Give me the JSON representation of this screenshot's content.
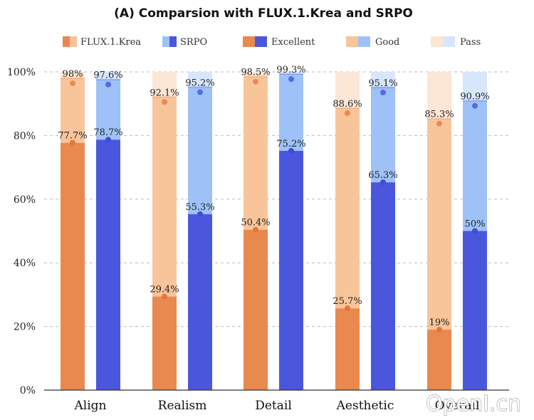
{
  "chart_data": {
    "type": "bar",
    "title": "(A)  Comparsion with FLUX.1.Krea and SRPO",
    "categories": [
      "Align",
      "Realism",
      "Detail",
      "Aesthetic",
      "Overall"
    ],
    "y_ticks": [
      "0%",
      "20%",
      "40%",
      "60%",
      "80%",
      "100%"
    ],
    "ylim": [
      0,
      100
    ],
    "grid": "horizontal dashed",
    "legend": {
      "placement": "top",
      "models": [
        {
          "name": "FLUX.1.Krea",
          "color": "#E8894F"
        },
        {
          "name": "SRPO",
          "color": "#4A57DD"
        }
      ],
      "levels": [
        "Excellent",
        "Good",
        "Pass"
      ]
    },
    "colors": {
      "flux": {
        "excellent": "#E8894F",
        "good": "#F8C59A",
        "pass": "#FCE6D5",
        "dot": "#E8743A"
      },
      "srpo": {
        "excellent": "#4A57DD",
        "good": "#9EC2F7",
        "pass": "#D7E6FB",
        "dot": "#3B4FD8"
      }
    },
    "series": [
      {
        "name": "FLUX.1.Krea",
        "excellent": [
          77.7,
          29.4,
          50.4,
          25.7,
          19
        ],
        "good_or_better": [
          98,
          92.1,
          98.5,
          88.6,
          85.3
        ],
        "excellent_labels": [
          "77.7%",
          "29.4%",
          "50.4%",
          "25.7%",
          "19%"
        ],
        "good_labels": [
          "98%",
          "92.1%",
          "98.5%",
          "88.6%",
          "85.3%"
        ]
      },
      {
        "name": "SRPO",
        "excellent": [
          78.7,
          55.3,
          75.2,
          65.3,
          50
        ],
        "good_or_better": [
          97.6,
          95.2,
          99.3,
          95.1,
          90.9
        ],
        "excellent_labels": [
          "78.7%",
          "55.3%",
          "75.2%",
          "65.3%",
          "50%"
        ],
        "good_labels": [
          "97.6%",
          "95.2%",
          "99.3%",
          "95.1%",
          "90.9%"
        ]
      }
    ]
  },
  "watermark": "OpenI.cn"
}
